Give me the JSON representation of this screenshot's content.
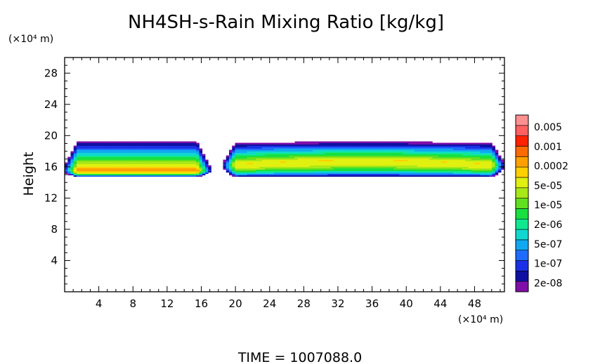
{
  "chart_data": {
    "type": "heatmap",
    "title": "NH4SH-s-Rain Mixing Ratio [kg/kg]",
    "xlabel": "",
    "ylabel": "Height",
    "x_unit_label": "(×10⁴ m)",
    "y_unit_label": "(×10⁴ m)",
    "footer": "TIME = 1007088.0",
    "xlim": [
      0,
      51.5
    ],
    "ylim": [
      0,
      30
    ],
    "x_ticks": [
      4,
      8,
      12,
      16,
      20,
      24,
      28,
      32,
      36,
      40,
      44,
      48
    ],
    "y_ticks": [
      4,
      8,
      12,
      16,
      20,
      24,
      28
    ],
    "colorbar": {
      "labels": [
        "0.005",
        "0.001",
        "0.0002",
        "5e-05",
        "1e-05",
        "2e-06",
        "5e-07",
        "1e-07",
        "2e-08"
      ],
      "levels": [
        {
          "threshold": 1e-08,
          "color": "#7f0fa8"
        },
        {
          "threshold": 2e-08,
          "color": "#1010a0"
        },
        {
          "threshold": 5e-08,
          "color": "#1a30e6"
        },
        {
          "threshold": 1e-07,
          "color": "#1f6bff"
        },
        {
          "threshold": 2e-07,
          "color": "#10a8f0"
        },
        {
          "threshold": 5e-07,
          "color": "#10d8d0"
        },
        {
          "threshold": 1e-06,
          "color": "#10e890"
        },
        {
          "threshold": 2e-06,
          "color": "#18e040"
        },
        {
          "threshold": 5e-06,
          "color": "#60e020"
        },
        {
          "threshold": 1e-05,
          "color": "#a8e818"
        },
        {
          "threshold": 2e-05,
          "color": "#e0f010"
        },
        {
          "threshold": 5e-05,
          "color": "#ffd000"
        },
        {
          "threshold": 0.0001,
          "color": "#ffa000"
        },
        {
          "threshold": 0.0002,
          "color": "#ff6a00"
        },
        {
          "threshold": 0.0005,
          "color": "#ff2000"
        },
        {
          "threshold": 0.001,
          "color": "#ff6060"
        },
        {
          "threshold": 0.002,
          "color": "#ff9090"
        }
      ]
    },
    "regions": [
      {
        "x0": 0.0,
        "x1": 17.0,
        "ybase": 14.7,
        "peak_y": 15.6,
        "top_y": 19.3,
        "peak_log": -3.8
      },
      {
        "x0": 18.5,
        "x1": 51.5,
        "ybase": 14.5,
        "peak_y": 16.3,
        "top_y": 19.5,
        "peak_log": -4.3
      }
    ]
  }
}
